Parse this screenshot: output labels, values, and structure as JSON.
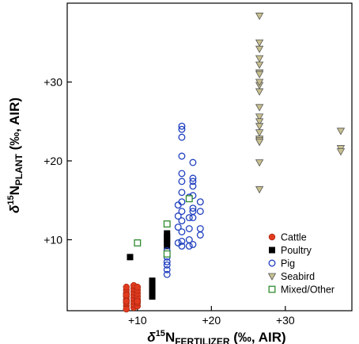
{
  "chart_data": {
    "type": "scatter",
    "title": "",
    "xlabel": {
      "main": "δ",
      "sup": "15",
      "n": "N",
      "sub": "FERTILIZER",
      "units": " (‰, AIR)"
    },
    "ylabel": {
      "main": "δ",
      "sup": "15",
      "n": "N",
      "sub": "PLANT",
      "units": " (‰, AIR)"
    },
    "xlim": [
      0.5,
      39
    ],
    "ylim": [
      1,
      40
    ],
    "x_ticks": [
      {
        "value": 10,
        "label": "+10"
      },
      {
        "value": 20,
        "label": "+20"
      },
      {
        "value": 30,
        "label": "+30"
      }
    ],
    "y_ticks": [
      {
        "value": 10,
        "label": "+10"
      },
      {
        "value": 20,
        "label": "+20"
      },
      {
        "value": 30,
        "label": "+30"
      }
    ],
    "legend_position": "bottom-right",
    "series": [
      {
        "name": "Cattle",
        "marker": "filled-circle",
        "color": "#e03a1e",
        "x": [
          8.5,
          8.5,
          8.5,
          8.5,
          8.5,
          8.5,
          8.5,
          8.5,
          8.5,
          8.5,
          9.5,
          9.5,
          9.5,
          9.5,
          9.5,
          9.5,
          9.5,
          9.5,
          10.0,
          10.0,
          10.0,
          10.0,
          10.0,
          10.0,
          10.0,
          10.0
        ],
        "y": [
          1.6,
          2.0,
          2.4,
          2.8,
          3.2,
          3.6,
          4.0,
          2.2,
          3.0,
          1.2,
          1.4,
          1.8,
          2.2,
          2.6,
          3.0,
          3.4,
          3.8,
          4.2,
          1.6,
          2.0,
          2.4,
          2.8,
          3.2,
          3.6,
          4.0,
          2.2
        ]
      },
      {
        "name": "Poultry",
        "marker": "filled-square",
        "color": "#000000",
        "x": [
          9.0,
          12.0,
          12.0,
          12.0,
          12.0,
          12.0,
          12.0,
          14.0,
          14.0,
          14.0,
          14.0,
          14.0
        ],
        "y": [
          7.8,
          2.8,
          3.2,
          3.6,
          4.0,
          4.4,
          4.8,
          9.2,
          9.6,
          10.0,
          10.4,
          10.8
        ]
      },
      {
        "name": "Pig",
        "marker": "open-circle",
        "color": "#1f3fbf",
        "x": [
          14.0,
          14.0,
          14.0,
          14.0,
          14.0,
          14.0,
          15.5,
          15.5,
          15.5,
          15.5,
          16.0,
          16.0,
          16.0,
          16.0,
          16.0,
          16.0,
          16.0,
          16.0,
          16.0,
          16.0,
          16.0,
          16.0,
          16.0,
          17.0,
          17.0,
          17.0,
          17.0,
          17.0,
          17.5,
          17.5,
          17.5,
          17.5,
          17.5,
          17.5,
          17.5,
          17.5,
          17.5,
          18.5,
          18.5,
          18.5,
          18.5
        ],
        "y": [
          5.6,
          6.2,
          6.8,
          7.2,
          7.8,
          8.6,
          9.6,
          11.6,
          13.0,
          14.4,
          9.2,
          9.8,
          11.0,
          12.4,
          13.6,
          14.8,
          16.0,
          17.4,
          18.4,
          20.6,
          23.0,
          24.0,
          24.4,
          9.2,
          10.0,
          11.4,
          12.8,
          15.4,
          9.4,
          12.8,
          13.6,
          14.0,
          15.6,
          16.8,
          17.4,
          17.8,
          19.8,
          10.6,
          11.4,
          13.6,
          14.8
        ]
      },
      {
        "name": "Seabird",
        "marker": "down-triangle",
        "color": "#c8c090",
        "x": [
          26.5,
          26.5,
          26.5,
          26.5,
          26.5,
          26.5,
          26.5,
          26.5,
          26.5,
          26.5,
          26.5,
          26.5,
          26.5,
          26.5,
          26.5,
          26.5,
          26.5,
          26.5,
          26.5,
          26.5,
          37.5,
          37.5,
          37.5
        ],
        "y": [
          38.4,
          35.0,
          34.2,
          33.0,
          29.6,
          28.8,
          26.8,
          25.6,
          25.0,
          24.4,
          23.6,
          22.8,
          22.6,
          22.4,
          19.8,
          16.4,
          30.0,
          31.2,
          32.2,
          31.0,
          23.8,
          21.6,
          21.2
        ]
      },
      {
        "name": "Mixed/Other",
        "marker": "open-square",
        "color": "#2f8a2f",
        "x": [
          10.0,
          14.0,
          14.0,
          17.0
        ],
        "y": [
          9.6,
          12.0,
          8.2,
          15.2
        ]
      }
    ]
  }
}
